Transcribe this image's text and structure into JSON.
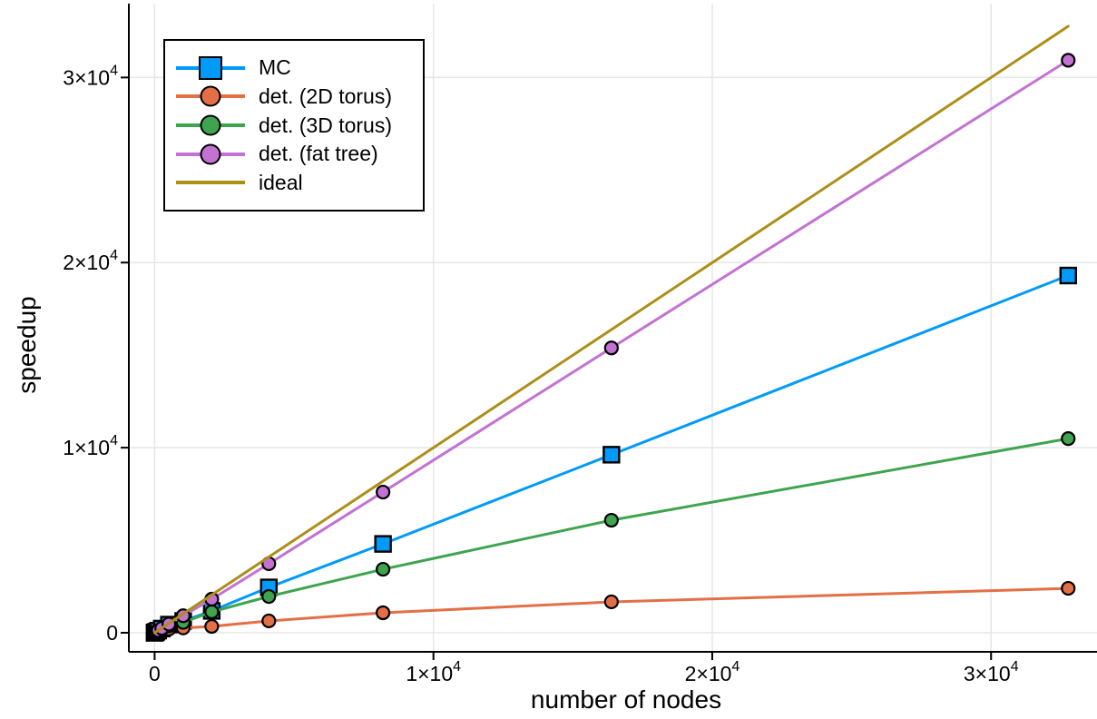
{
  "figure": {
    "background_color": "#ffffff",
    "axis_color": "#000000",
    "grid_color": "#e5e5e5",
    "xlabel": "number of nodes",
    "ylabel": "speedup"
  },
  "chart_data": {
    "type": "line",
    "title": "",
    "xlabel": "number of nodes",
    "ylabel": "speedup",
    "grid": true,
    "legend_position": "top-left",
    "xlim": [
      -925,
      33800
    ],
    "ylim": [
      -1030,
      33990
    ],
    "x_ticks": [
      {
        "v": 0,
        "base": "0",
        "exp": ""
      },
      {
        "v": 10000,
        "base": "1×10",
        "exp": "4"
      },
      {
        "v": 20000,
        "base": "2×10",
        "exp": "4"
      },
      {
        "v": 30000,
        "base": "3×10",
        "exp": "4"
      }
    ],
    "y_ticks": [
      {
        "v": 0,
        "base": "0",
        "exp": ""
      },
      {
        "v": 10000,
        "base": "1×10",
        "exp": "4"
      },
      {
        "v": 20000,
        "base": "2×10",
        "exp": "4"
      },
      {
        "v": 30000,
        "base": "3×10",
        "exp": "4"
      }
    ],
    "x": [
      1,
      2,
      4,
      8,
      16,
      32,
      64,
      128,
      256,
      512,
      1024,
      2048,
      4096,
      8192,
      16384,
      32768
    ],
    "series": [
      {
        "name": "MC",
        "color": "#009AFA",
        "marker": "square",
        "marker_size": 17,
        "values": [
          1,
          2,
          4,
          8,
          15,
          30,
          59,
          115,
          225,
          440,
          640,
          1180,
          2450,
          4800,
          9620,
          19300
        ]
      },
      {
        "name": "det. (2D torus)",
        "color": "#E36F47",
        "marker": "circle",
        "marker_size": 14,
        "values": [
          1,
          2,
          4,
          7,
          13,
          25,
          45,
          80,
          140,
          200,
          260,
          345,
          640,
          1080,
          1670,
          2400
        ]
      },
      {
        "name": "det. (3D torus)",
        "color": "#3EA44E",
        "marker": "circle",
        "marker_size": 14,
        "values": [
          1,
          2,
          4,
          8,
          15,
          29,
          56,
          105,
          200,
          370,
          560,
          1130,
          1960,
          3430,
          6080,
          10490
        ]
      },
      {
        "name": "det. (fat tree)",
        "color": "#C371D2",
        "marker": "circle",
        "marker_size": 14,
        "values": [
          1,
          2,
          4,
          8,
          16,
          31,
          62,
          122,
          240,
          470,
          920,
          1815,
          3730,
          7600,
          15390,
          30930
        ]
      },
      {
        "name": "ideal",
        "color": "#AC8E18",
        "marker": "none",
        "marker_size": 0,
        "values": [
          1,
          2,
          4,
          8,
          16,
          32,
          64,
          128,
          256,
          512,
          1024,
          2048,
          4096,
          8192,
          16384,
          32768
        ]
      }
    ]
  }
}
